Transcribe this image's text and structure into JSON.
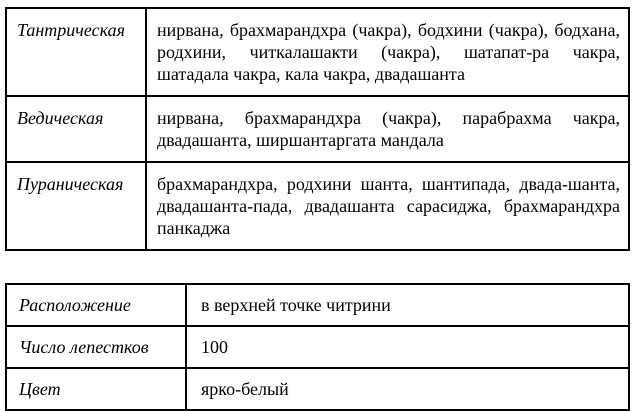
{
  "page": {
    "background_color": "#ffffff",
    "text_color": "#000000",
    "border_color": "#000000"
  },
  "traditions_table": {
    "rows": [
      {
        "label": "Тантрическая",
        "value": "нирвана, брахмарандхра (чакра), бодхини (чакра), бодхана, родхини, читкалашакти (чакра), шатапат-ра чакра, шатадала чакра, кала чакра, двадашанта"
      },
      {
        "label": "Ведическая",
        "value": "нирвана, брахмарандхра (чакра), парабрахма чакра, двадашанта, ширшантаргата мандала"
      },
      {
        "label": "Пураническая",
        "value": "брахмарандхра, родхини шанта, шантипада, двада-шанта, двадашанта-пада, двадашанта сарасиджа, брахмарандхра панкаджа"
      }
    ]
  },
  "properties_table": {
    "rows": [
      {
        "label": "Расположение",
        "value": "в верхней точке читрини"
      },
      {
        "label": "Число лепестков",
        "value": "100"
      },
      {
        "label": "Цвет",
        "value": "ярко-белый"
      }
    ]
  }
}
